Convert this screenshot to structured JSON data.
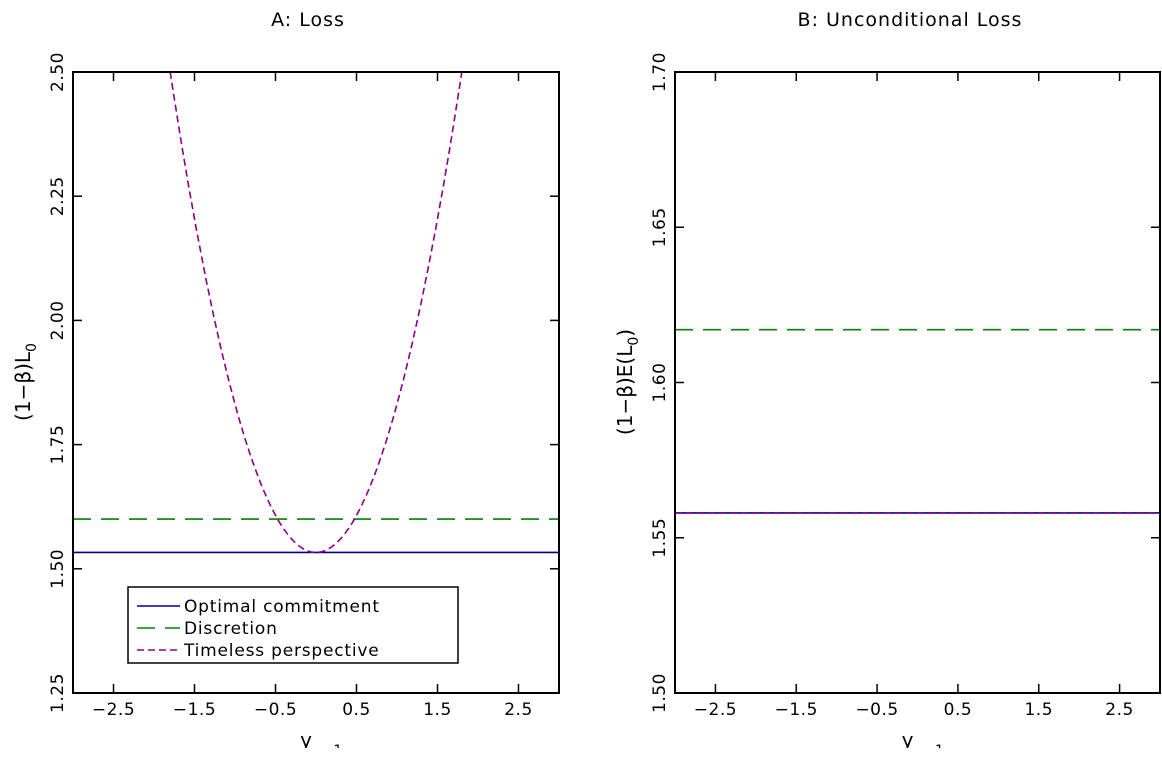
{
  "chart_data": [
    {
      "type": "line",
      "title": "A: Loss",
      "xlabel": "y_{-1}",
      "ylabel": "(1−β)L_0",
      "xlim": [
        -3.0,
        3.0
      ],
      "ylim": [
        1.25,
        2.5
      ],
      "xticks": [
        "−2.5",
        "−1.5",
        "−0.5",
        "0.5",
        "1.5",
        "2.5"
      ],
      "xtick_values": [
        -2.5,
        -1.5,
        -0.5,
        0.5,
        1.5,
        2.5
      ],
      "yticks": [
        "1.25",
        "1.50",
        "1.75",
        "2.00",
        "2.25",
        "2.50"
      ],
      "ytick_values": [
        1.25,
        1.5,
        1.75,
        2.0,
        2.25,
        2.5
      ],
      "grid": false,
      "legend_position": "bottom-center",
      "series": [
        {
          "name": "Optimal commitment",
          "color": "#00008b",
          "style": "solid",
          "x": [
            -3.0,
            3.0
          ],
          "y": [
            1.533,
            1.533
          ]
        },
        {
          "name": "Discretion",
          "color": "#008000",
          "style": "long-dash",
          "x": [
            -3.0,
            3.0
          ],
          "y": [
            1.6,
            1.6
          ]
        },
        {
          "name": "Timeless perspective",
          "color": "#8b008b",
          "style": "short-dash",
          "x": [
            -1.8,
            -1.5,
            -1.0,
            -0.5,
            -0.25,
            0.0,
            0.25,
            0.5,
            1.0,
            1.5,
            1.8
          ],
          "y": [
            2.5,
            2.23,
            1.82,
            1.615,
            1.555,
            1.533,
            1.555,
            1.615,
            1.82,
            2.23,
            2.5
          ]
        }
      ]
    },
    {
      "type": "line",
      "title": "B: Unconditional Loss",
      "xlabel": "y_{-1}",
      "ylabel": "(1−β)E(L_0)",
      "xlim": [
        -3.0,
        3.0
      ],
      "ylim": [
        1.5,
        1.7
      ],
      "xticks": [
        "−2.5",
        "−1.5",
        "−0.5",
        "0.5",
        "1.5",
        "2.5"
      ],
      "xtick_values": [
        -2.5,
        -1.5,
        -0.5,
        0.5,
        1.5,
        2.5
      ],
      "yticks": [
        "1.50",
        "1.55",
        "1.60",
        "1.65",
        "1.70"
      ],
      "ytick_values": [
        1.5,
        1.55,
        1.6,
        1.65,
        1.7
      ],
      "grid": false,
      "series": [
        {
          "color": "#00008b",
          "style": "solid",
          "x": [
            -3.0,
            3.0
          ],
          "y": [
            1.558,
            1.558
          ]
        },
        {
          "color": "#008000",
          "style": "long-dash",
          "x": [
            -3.0,
            3.0
          ],
          "y": [
            1.617,
            1.617
          ]
        },
        {
          "color": "#8b008b",
          "style": "short-dash",
          "x": [
            -3.0,
            3.0
          ],
          "y": [
            1.558,
            1.558
          ]
        }
      ]
    }
  ]
}
